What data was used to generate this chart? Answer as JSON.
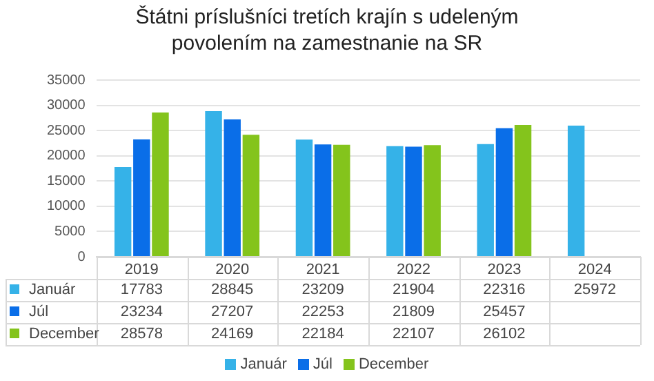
{
  "chart_data": {
    "type": "bar",
    "title": "Štátni príslušníci tretích krajín s udeleným povolením na zamestnanie na SR",
    "categories": [
      "2019",
      "2020",
      "2021",
      "2022",
      "2023",
      "2024"
    ],
    "series": [
      {
        "name": "Január",
        "color": "#35b2e8",
        "values": [
          17783,
          28845,
          23209,
          21904,
          22316,
          25972
        ]
      },
      {
        "name": "Júl",
        "color": "#0a6ee8",
        "values": [
          23234,
          27207,
          22253,
          21809,
          25457,
          null
        ]
      },
      {
        "name": "December",
        "color": "#84c41c",
        "values": [
          28578,
          24169,
          22184,
          22107,
          26102,
          null
        ]
      }
    ],
    "ylim": [
      0,
      35000
    ],
    "yticks": [
      0,
      5000,
      10000,
      15000,
      20000,
      25000,
      30000,
      35000
    ],
    "grid": "y",
    "legend": "bottom",
    "data_labels": true
  }
}
